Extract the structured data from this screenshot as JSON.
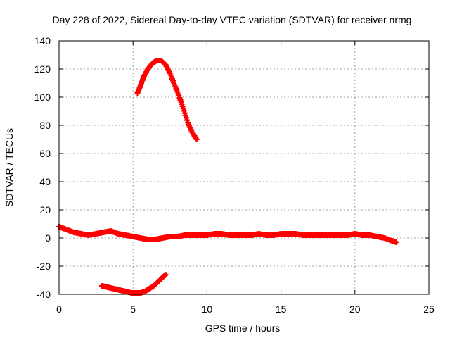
{
  "chart_data": {
    "type": "scatter",
    "title": "Day 228 of 2022, Sidereal Day-to-day VTEC variation (SDTVAR) for receiver nrmg",
    "xlabel": "GPS time / hours",
    "ylabel": "SDTVAR / TECUs",
    "xlim": [
      0,
      25
    ],
    "ylim": [
      -40,
      140
    ],
    "xticks": [
      0,
      5,
      10,
      15,
      20,
      25
    ],
    "yticks": [
      -40,
      -20,
      0,
      20,
      40,
      60,
      80,
      100,
      120,
      140
    ],
    "grid": true,
    "series_color": "#ff0000",
    "series": [
      {
        "name": "main",
        "x": [
          0.0,
          0.5,
          1.0,
          1.5,
          2.0,
          2.5,
          3.0,
          3.5,
          4.0,
          4.5,
          5.0,
          5.5,
          6.0,
          6.5,
          7.0,
          7.5,
          8.0,
          8.5,
          9.0,
          9.5,
          10.0,
          10.5,
          11.0,
          11.5,
          12.0,
          12.5,
          13.0,
          13.5,
          14.0,
          14.5,
          15.0,
          15.5,
          16.0,
          16.5,
          17.0,
          17.5,
          18.0,
          18.5,
          19.0,
          19.5,
          20.0,
          20.5,
          21.0,
          21.5,
          22.0,
          22.5,
          22.8
        ],
        "y": [
          8,
          6,
          4,
          3,
          2,
          3,
          4,
          5,
          3,
          2,
          1,
          0,
          -1,
          -1,
          0,
          1,
          1,
          2,
          2,
          2,
          2,
          3,
          3,
          2,
          2,
          2,
          2,
          3,
          2,
          2,
          3,
          3,
          3,
          2,
          2,
          2,
          2,
          2,
          2,
          2,
          3,
          2,
          2,
          1,
          0,
          -2,
          -3
        ]
      },
      {
        "name": "upper-arc",
        "x": [
          5.3,
          5.5,
          5.7,
          6.0,
          6.3,
          6.6,
          6.9,
          7.2,
          7.5,
          7.8,
          8.1,
          8.4,
          8.7,
          9.0,
          9.3
        ],
        "y": [
          103,
          108,
          114,
          120,
          124,
          126,
          126,
          123,
          117,
          109,
          101,
          92,
          82,
          75,
          70
        ]
      },
      {
        "name": "lower-arc",
        "x": [
          2.9,
          3.3,
          3.7,
          4.1,
          4.5,
          4.9,
          5.2,
          5.5,
          5.8,
          6.1,
          6.4,
          6.7,
          7.0,
          7.2
        ],
        "y": [
          -34,
          -35,
          -36,
          -37,
          -38,
          -39,
          -39,
          -39,
          -38,
          -36,
          -34,
          -31,
          -28,
          -26
        ]
      }
    ]
  }
}
